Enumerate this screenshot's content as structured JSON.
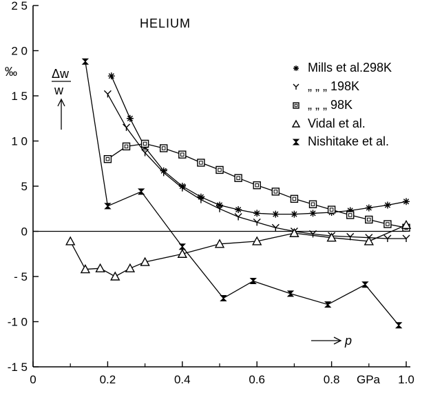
{
  "chart_data": {
    "type": "line",
    "title": "HELIUM",
    "ylabel_unit": "‰",
    "ylabel_top": "Δw",
    "ylabel_bottom": "w",
    "xlabel": "p",
    "x_unit_label": "GPa",
    "xlim": [
      0,
      1.0
    ],
    "ylim": [
      -15,
      25
    ],
    "x_ticks": [
      "0",
      "0.2",
      "0.4",
      "0.6",
      "0.8",
      "1.0"
    ],
    "x_tick_values": [
      0,
      0.2,
      0.4,
      0.6,
      0.8,
      1.0
    ],
    "y_ticks": [
      "2 5",
      "2 0",
      "1 5",
      "1 0",
      "5",
      "0",
      "- 5",
      "-1 0",
      "-1 5"
    ],
    "y_tick_values": [
      25,
      20,
      15,
      10,
      5,
      0,
      -5,
      -10,
      -15
    ],
    "grid": false,
    "reference_line_y": 0,
    "legend_position": "top-right",
    "series": [
      {
        "name": "Mills et al.298K",
        "symbol": "star",
        "x": [
          0.21,
          0.26,
          0.3,
          0.35,
          0.4,
          0.45,
          0.5,
          0.55,
          0.6,
          0.65,
          0.7,
          0.75,
          0.8,
          0.85,
          0.9,
          0.95,
          1.0
        ],
        "y": [
          17.2,
          12.5,
          9.3,
          6.7,
          5.0,
          3.8,
          2.9,
          2.4,
          2.0,
          1.9,
          1.9,
          2.0,
          2.1,
          2.3,
          2.6,
          2.9,
          3.3
        ]
      },
      {
        "name": " „      „   „ 198K",
        "symbol": "y",
        "x": [
          0.2,
          0.25,
          0.3,
          0.35,
          0.4,
          0.45,
          0.5,
          0.55,
          0.6,
          0.65,
          0.7,
          0.75,
          0.8,
          0.85,
          0.9,
          0.95,
          1.0
        ],
        "y": [
          15.2,
          11.5,
          8.7,
          6.5,
          4.8,
          3.5,
          2.5,
          1.6,
          1.0,
          0.4,
          0.0,
          -0.3,
          -0.5,
          -0.6,
          -0.7,
          -0.8,
          -0.8
        ],
        "symbol_note": "plotted with Y marker"
      },
      {
        "name": " „      „   „   98K",
        "symbol": "square",
        "x": [
          0.2,
          0.25,
          0.3,
          0.35,
          0.4,
          0.45,
          0.5,
          0.55,
          0.6,
          0.65,
          0.7,
          0.75,
          0.8,
          0.85,
          0.9,
          0.95,
          1.0
        ],
        "y": [
          8.0,
          9.4,
          9.7,
          9.2,
          8.5,
          7.6,
          6.8,
          5.9,
          5.1,
          4.4,
          3.6,
          3.0,
          2.4,
          1.8,
          1.3,
          0.8,
          0.4
        ]
      },
      {
        "name": "Vidal et al.",
        "symbol": "triangle",
        "x": [
          0.1,
          0.14,
          0.18,
          0.22,
          0.26,
          0.3,
          0.4,
          0.5,
          0.6,
          0.7,
          0.8,
          0.9,
          1.0
        ],
        "y": [
          -1.1,
          -4.2,
          -4.1,
          -5.0,
          -4.1,
          -3.4,
          -2.5,
          -1.4,
          -1.1,
          -0.2,
          -0.7,
          -1.1,
          0.7
        ]
      },
      {
        "name": "Nishitake et al.",
        "symbol": "hourglass",
        "x": [
          0.14,
          0.2,
          0.29,
          0.4,
          0.51,
          0.59,
          0.69,
          0.79,
          0.89,
          0.98
        ],
        "y": [
          18.8,
          2.8,
          4.4,
          -1.7,
          -7.4,
          -5.5,
          -6.9,
          -8.1,
          -5.9,
          -10.4
        ]
      }
    ]
  }
}
